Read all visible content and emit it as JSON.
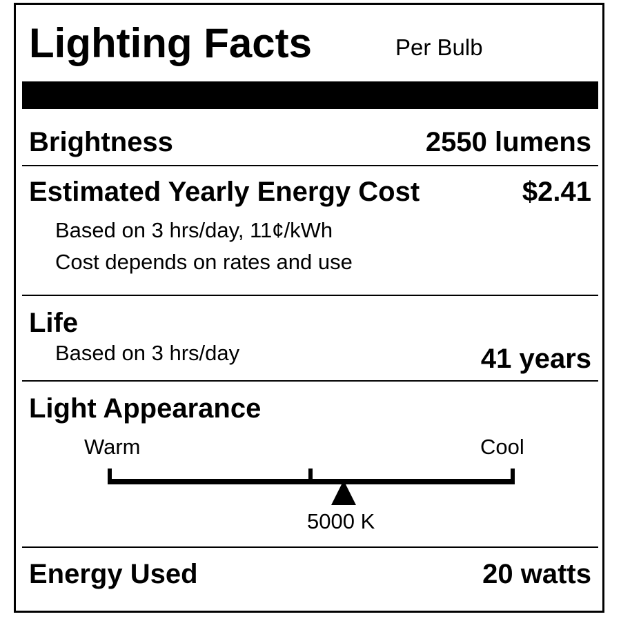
{
  "header": {
    "title": "Lighting Facts",
    "per": "Per Bulb"
  },
  "brightness": {
    "label": "Brightness",
    "value": "2550 lumens"
  },
  "cost": {
    "label": "Estimated Yearly Energy Cost",
    "value": "$2.41",
    "note1": "Based on 3 hrs/day, 11¢/kWh",
    "note2": "Cost depends on rates and use"
  },
  "life": {
    "label": "Life",
    "note": "Based on 3 hrs/day",
    "value": "41 years"
  },
  "appearance": {
    "label": "Light Appearance",
    "warm": "Warm",
    "cool": "Cool",
    "value": "5000 K",
    "marker_fraction": 0.58
  },
  "energy": {
    "label": "Energy Used",
    "value": "20 watts"
  }
}
